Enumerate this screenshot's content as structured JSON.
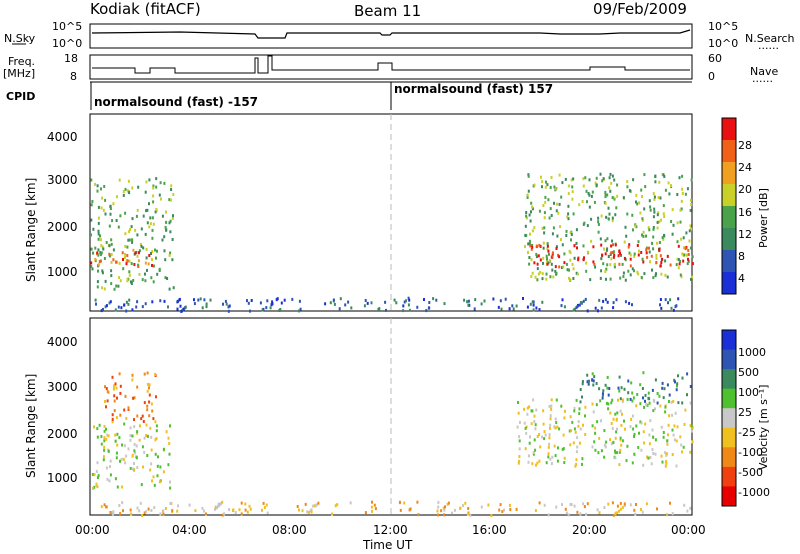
{
  "header": {
    "site": "Kodiak (fitACF)",
    "beam": "Beam 11",
    "date": "09/Feb/2009"
  },
  "left_labels": {
    "nsky": "N.Sky",
    "freq": "Freq.",
    "freq_unit": "[MHz]",
    "cpid": "CPID"
  },
  "right_labels": {
    "nsearch": "N.Search",
    "nave": "Nave",
    "dots": "......"
  },
  "noise_panel": {
    "ticks_left": [
      "10^5",
      "10^0"
    ],
    "ticks_right": [
      "10^5",
      "10^0"
    ]
  },
  "freq_panel": {
    "ticks_left": [
      "18",
      "8"
    ],
    "ticks_right": [
      "60",
      "0"
    ]
  },
  "cpid_panel": {
    "mode_1": "normalsound (fast) -157",
    "mode_2": "normalsound (fast) 157"
  },
  "colors": {
    "power_scale": [
      "#1b2fd6",
      "#2e55b4",
      "#3a8a5e",
      "#4aa24a",
      "#c9d028",
      "#f0a020",
      "#f06018",
      "#e81010"
    ],
    "velocity_scale": [
      "#1b2fd6",
      "#2e55b4",
      "#3a8a5e",
      "#4fc030",
      "#c8c8c8",
      "#f0c020",
      "#f08818",
      "#f04010",
      "#e80000"
    ]
  },
  "chart_data": [
    {
      "type": "heatmap",
      "title": "",
      "xlabel": "Time UT",
      "ylabel": "Slant Range [km]",
      "x_ticks": [
        "00:00",
        "04:00",
        "08:00",
        "12:00",
        "16:00",
        "20:00",
        "00:00"
      ],
      "y_ticks": [
        "1000",
        "2000",
        "3000",
        "4000"
      ],
      "xlim_hours": [
        0,
        24
      ],
      "ylim_km": [
        180,
        4590
      ],
      "colorbar": {
        "label": "Power [dB]",
        "ticks": [
          "4",
          "8",
          "12",
          "16",
          "20",
          "24",
          "28"
        ],
        "range": [
          0,
          30
        ]
      },
      "echo_regions": [
        {
          "t0": 0.0,
          "t1": 3.3,
          "r0": 700,
          "r1": 3200,
          "dominant_power_db": 14
        },
        {
          "t0": 0.0,
          "t1": 2.5,
          "r0": 1200,
          "r1": 1600,
          "dominant_power_db": 26
        },
        {
          "t0": 17.3,
          "t1": 24.0,
          "r0": 900,
          "r1": 3300,
          "dominant_power_db": 14
        },
        {
          "t0": 17.5,
          "t1": 24.0,
          "r0": 1200,
          "r1": 1700,
          "dominant_power_db": 27
        },
        {
          "t0": 0.0,
          "t1": 24.0,
          "r0": 200,
          "r1": 500,
          "dominant_power_db": 6
        }
      ]
    },
    {
      "type": "heatmap",
      "title": "",
      "xlabel": "Time UT",
      "ylabel": "Slant Range [km]",
      "x_ticks": [
        "00:00",
        "04:00",
        "08:00",
        "12:00",
        "16:00",
        "20:00",
        "00:00"
      ],
      "y_ticks": [
        "1000",
        "2000",
        "3000",
        "4000"
      ],
      "xlim_hours": [
        0,
        24
      ],
      "ylim_km": [
        180,
        4590
      ],
      "colorbar": {
        "label": "Velocity [m s⁻¹]",
        "ticks": [
          "1000",
          "500",
          "100",
          "25",
          "-25",
          "-100",
          "-500",
          "-1000"
        ]
      },
      "echo_regions": [
        {
          "t0": 0.0,
          "t1": 3.2,
          "r0": 800,
          "r1": 2300,
          "dominant_velocity": 0
        },
        {
          "t0": 0.5,
          "t1": 2.6,
          "r0": 2300,
          "r1": 3400,
          "dominant_velocity": -100
        },
        {
          "t0": 17.0,
          "t1": 24.0,
          "r0": 1300,
          "r1": 2800,
          "dominant_velocity": 0
        },
        {
          "t0": 19.5,
          "t1": 24.0,
          "r0": 2700,
          "r1": 3400,
          "dominant_velocity": 100
        },
        {
          "t0": 0.0,
          "t1": 24.0,
          "r0": 200,
          "r1": 500,
          "dominant_velocity": -50
        }
      ]
    }
  ]
}
